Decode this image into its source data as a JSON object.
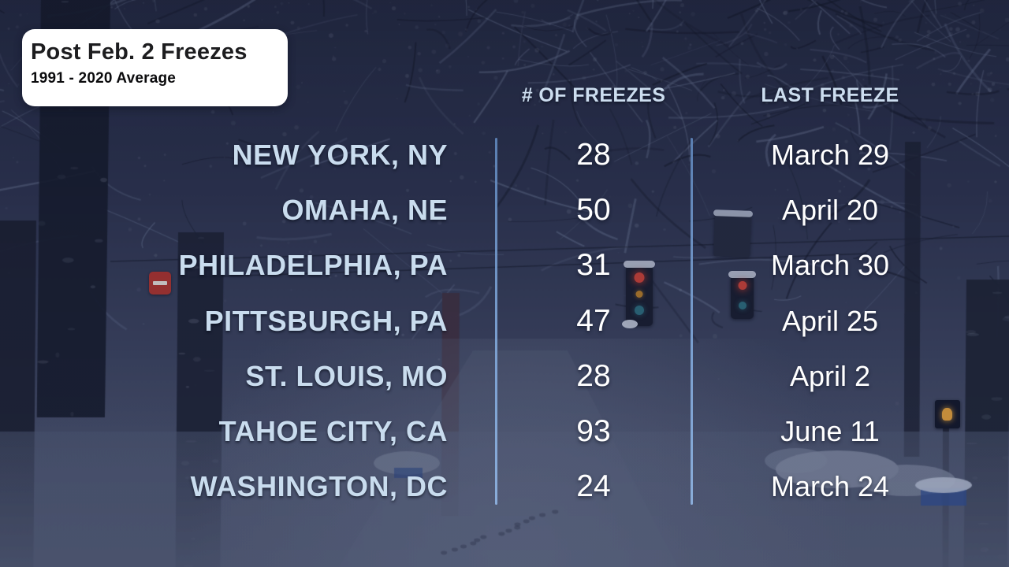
{
  "card": {
    "title": "Post Feb. 2 Freezes",
    "subtitle": "1991 - 2020 Average"
  },
  "chart_data": {
    "type": "table",
    "title": "Post Feb. 2 Freezes",
    "subtitle": "1991 - 2020 Average",
    "columns": [
      "# OF FREEZES",
      "LAST FREEZE"
    ],
    "rows": [
      {
        "city": "NEW YORK, NY",
        "freezes": 28,
        "last_freeze": "March 29"
      },
      {
        "city": "OMAHA, NE",
        "freezes": 50,
        "last_freeze": "April 20"
      },
      {
        "city": "PHILADELPHIA, PA",
        "freezes": 31,
        "last_freeze": "March 30"
      },
      {
        "city": "PITTSBURGH, PA",
        "freezes": 47,
        "last_freeze": "April 25"
      },
      {
        "city": "ST. LOUIS, MO",
        "freezes": 28,
        "last_freeze": "April 2"
      },
      {
        "city": "TAHOE CITY, CA",
        "freezes": 93,
        "last_freeze": "June 11"
      },
      {
        "city": "WASHINGTON, DC",
        "freezes": 24,
        "last_freeze": "March 24"
      }
    ]
  },
  "colors": {
    "city_text": "#c9dcee",
    "header_text": "#ccddef",
    "value_text": "#ffffff",
    "divider": "#6f94c8",
    "card_bg": "#ffffff",
    "card_title": "#1d1d1f",
    "background_navy": "#2e3552"
  }
}
